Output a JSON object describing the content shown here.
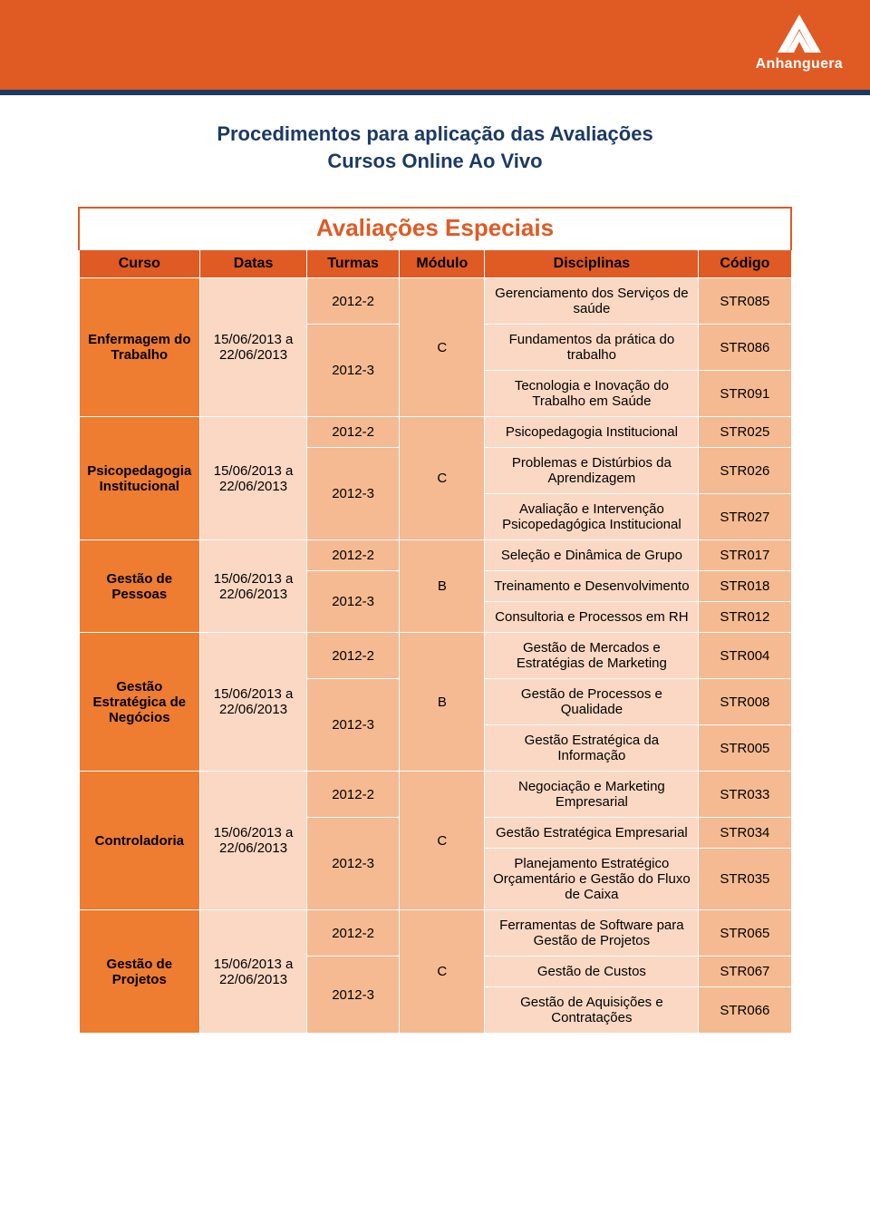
{
  "banner": {
    "background_color": "#e05a24",
    "stripe_color": "#1b3a63",
    "logo_text": "Anhanguera"
  },
  "title": {
    "line1": "Procedimentos para aplicação das Avaliações",
    "line2": "Cursos Online Ao Vivo",
    "color": "#1b3a63"
  },
  "table": {
    "title": "Avaliações Especiais",
    "header_bg": "#e05a24",
    "tints": {
      "curso": "#ee7c31",
      "datas": "#fad8c3",
      "turmas": "#f5ba91",
      "modulo": "#f5ba91",
      "disciplina": "#fad8c3",
      "codigo": "#f5ba91"
    },
    "columns": [
      "Curso",
      "Datas",
      "Turmas",
      "Módulo",
      "Disciplinas",
      "Código"
    ],
    "groups": [
      {
        "curso": "Enfermagem do Trabalho",
        "datas": "15/06/2013 a 22/06/2013",
        "modulo": "C",
        "turma1": "2012-2",
        "turma2": "2012-3",
        "rows": [
          {
            "disciplina": "Gerenciamento dos Serviços de saúde",
            "codigo": "STR085"
          },
          {
            "disciplina": "Fundamentos da prática do trabalho",
            "codigo": "STR086"
          },
          {
            "disciplina": "Tecnologia e Inovação do Trabalho em Saúde",
            "codigo": "STR091"
          }
        ]
      },
      {
        "curso": "Psicopedagogia Institucional",
        "datas": "15/06/2013 a 22/06/2013",
        "modulo": "C",
        "turma1": "2012-2",
        "turma2": "2012-3",
        "rows": [
          {
            "disciplina": "Psicopedagogia Institucional",
            "codigo": "STR025"
          },
          {
            "disciplina": "Problemas e Distúrbios da Aprendizagem",
            "codigo": "STR026"
          },
          {
            "disciplina": "Avaliação e Intervenção Psicopedagógica Institucional",
            "codigo": "STR027"
          }
        ]
      },
      {
        "curso": "Gestão de Pessoas",
        "datas": "15/06/2013 a 22/06/2013",
        "modulo": "B",
        "turma1": "2012-2",
        "turma2": "2012-3",
        "rows": [
          {
            "disciplina": "Seleção e Dinâmica de Grupo",
            "codigo": "STR017"
          },
          {
            "disciplina": "Treinamento e Desenvolvimento",
            "codigo": "STR018"
          },
          {
            "disciplina": "Consultoria e Processos em RH",
            "codigo": "STR012"
          }
        ]
      },
      {
        "curso": "Gestão Estratégica de Negócios",
        "datas": "15/06/2013 a 22/06/2013",
        "modulo": "B",
        "turma1": "2012-2",
        "turma2": "2012-3",
        "rows": [
          {
            "disciplina": "Gestão de Mercados e Estratégias de Marketing",
            "codigo": "STR004"
          },
          {
            "disciplina": "Gestão de Processos e Qualidade",
            "codigo": "STR008"
          },
          {
            "disciplina": "Gestão Estratégica da Informação",
            "codigo": "STR005"
          }
        ]
      },
      {
        "curso": "Controladoria",
        "datas": "15/06/2013 a 22/06/2013",
        "modulo": "C",
        "turma1": "2012-2",
        "turma2": "2012-3",
        "rows": [
          {
            "disciplina": "Negociação e Marketing Empresarial",
            "codigo": "STR033"
          },
          {
            "disciplina": "Gestão Estratégica Empresarial",
            "codigo": "STR034"
          },
          {
            "disciplina": "Planejamento Estratégico Orçamentário e Gestão do Fluxo de Caixa",
            "codigo": "STR035"
          }
        ]
      },
      {
        "curso": "Gestão de Projetos",
        "datas": "15/06/2013 a 22/06/2013",
        "modulo": "C",
        "turma1": "2012-2",
        "turma2": "2012-3",
        "rows": [
          {
            "disciplina": "Ferramentas de Software para Gestão de Projetos",
            "codigo": "STR065"
          },
          {
            "disciplina": "Gestão de Custos",
            "codigo": "STR067"
          },
          {
            "disciplina": "Gestão de Aquisições e Contratações",
            "codigo": "STR066"
          }
        ]
      }
    ]
  }
}
